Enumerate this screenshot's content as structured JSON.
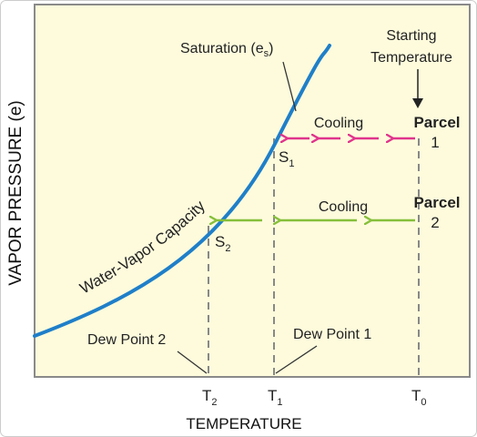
{
  "axes": {
    "y_title": "VAPOR PRESSURE (e)",
    "x_title": "TEMPERATURE",
    "ticks": [
      {
        "main": "T",
        "sub": "2"
      },
      {
        "main": "T",
        "sub": "1"
      },
      {
        "main": "T",
        "sub": "0"
      }
    ]
  },
  "curve": {
    "label_main": "Saturation (e",
    "label_sub": "s",
    "label_close": ")",
    "along_label": "Water-Vapor Capacity"
  },
  "start": {
    "line1": "Starting",
    "line2": "Temperature"
  },
  "parcel1": {
    "title": "Parcel",
    "number": "1",
    "arrow_label": "Cooling",
    "point_main": "S",
    "point_sub": "1",
    "dew_label": "Dew Point 1"
  },
  "parcel2": {
    "title": "Parcel",
    "number": "2",
    "arrow_label": "Cooling",
    "point_main": "S",
    "point_sub": "2",
    "dew_label": "Dew Point 2"
  },
  "colors": {
    "background": "#fdfbdc",
    "curve": "#1f7fc9",
    "parcel1_arrows": "#e0338c",
    "parcel2_arrows": "#86bf3a",
    "dashed": "#888888",
    "frame": "#8a8a8a"
  }
}
